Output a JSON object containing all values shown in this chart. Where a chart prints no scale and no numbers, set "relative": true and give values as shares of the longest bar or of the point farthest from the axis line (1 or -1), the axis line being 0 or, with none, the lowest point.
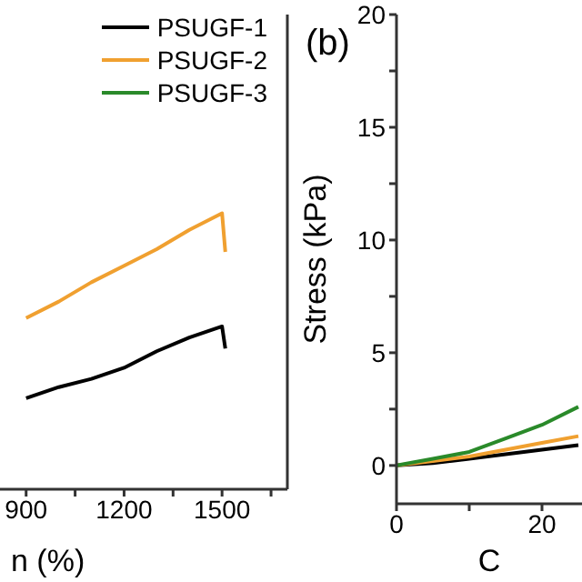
{
  "chart_data": [
    {
      "type": "line",
      "xlabel": "n (%)",
      "relative": true,
      "x": [
        900,
        1000,
        1100,
        1200,
        1300,
        1400,
        1500,
        1510
      ],
      "xlim": [
        820,
        1700
      ],
      "xticks": [
        900,
        {
          "value": 1050,
          "label": null
        },
        1200,
        {
          "value": 1350,
          "label": null
        },
        1500,
        {
          "value": 1650,
          "label": null
        }
      ],
      "legend": "top right",
      "series": [
        {
          "name": "PSUGF-1",
          "color": "#000000",
          "values": [
            0.33,
            0.37,
            0.4,
            0.44,
            0.5,
            0.55,
            0.59,
            0.51
          ]
        },
        {
          "name": "PSUGF-2",
          "color": "#f0a030",
          "values": [
            0.62,
            0.68,
            0.75,
            0.81,
            0.87,
            0.94,
            1.0,
            0.86
          ]
        },
        {
          "name": "PSUGF-3",
          "color": "#2a8a2a",
          "values": [
            null,
            null,
            null,
            null,
            null,
            null,
            null,
            null
          ]
        }
      ]
    },
    {
      "type": "line",
      "title": "(b)",
      "xlabel": "C",
      "ylabel": "Stress (kPa)",
      "x": [
        0,
        5,
        10,
        15,
        20,
        25
      ],
      "xlim": [
        0,
        25.5
      ],
      "xticks": [
        0,
        {
          "value": 10,
          "label": null
        },
        20
      ],
      "ylim": [
        -1.7,
        20
      ],
      "yticks": [
        0,
        {
          "value": 2.5,
          "label": null
        },
        5,
        {
          "value": 7.5,
          "label": null
        },
        10,
        {
          "value": 12.5,
          "label": null
        },
        15,
        {
          "value": 17.5,
          "label": null
        },
        20
      ],
      "series": [
        {
          "color": "#000000",
          "values": [
            0,
            0.1,
            0.3,
            0.5,
            0.7,
            0.9
          ]
        },
        {
          "color": "#f0a030",
          "values": [
            0,
            0.2,
            0.4,
            0.7,
            1.0,
            1.3
          ]
        },
        {
          "color": "#2a8a2a",
          "values": [
            0,
            0.3,
            0.6,
            1.2,
            1.8,
            2.6
          ]
        }
      ]
    }
  ]
}
